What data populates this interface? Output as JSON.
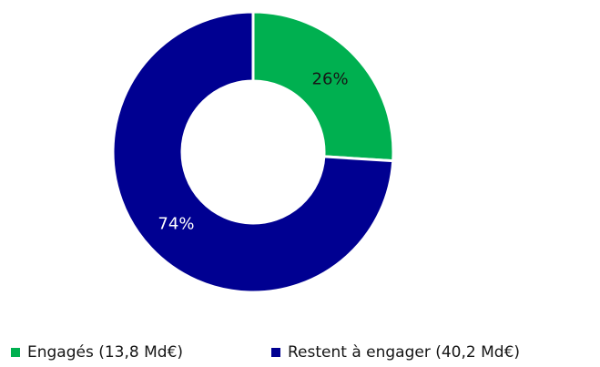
{
  "chart_data": {
    "type": "pie",
    "categories": [
      "Engagés (13,8 Md€)",
      "Restent à engager (40,2 Md€)"
    ],
    "values": [
      26,
      74
    ],
    "value_labels": [
      "26%",
      "74%"
    ],
    "colors": [
      "#00b050",
      "#000091"
    ],
    "legend": "bottom"
  }
}
